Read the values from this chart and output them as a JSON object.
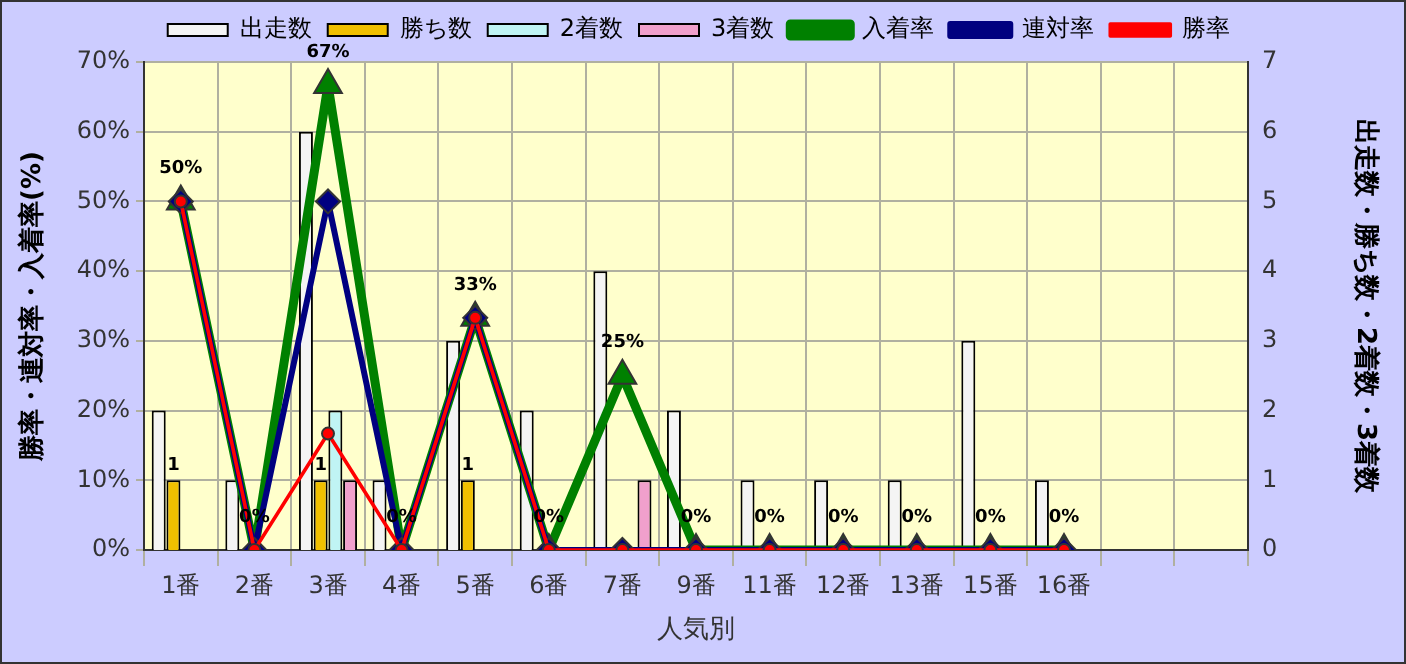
{
  "chart_data": {
    "type": "bar",
    "xlabel": "人気別",
    "ylabel": "勝率・連対率・入着率(%)",
    "y2label": "出走数・勝ち数・2着数・3着数",
    "categories": [
      "1番",
      "2番",
      "3番",
      "4番",
      "5番",
      "6番",
      "7番",
      "9番",
      "11番",
      "12番",
      "13番",
      "15番",
      "16番",
      null,
      null
    ],
    "series": [
      {
        "name": "出走数",
        "axis": "y2",
        "color": "#f4f4f4",
        "values": [
          2,
          1,
          6,
          1,
          3,
          2,
          4,
          2,
          1,
          1,
          1,
          3,
          1,
          null,
          null
        ]
      },
      {
        "name": "勝ち数",
        "axis": "y2",
        "color": "#f0c000",
        "values": [
          1,
          0,
          1,
          0,
          1,
          0,
          0,
          0,
          0,
          0,
          0,
          0,
          0,
          null,
          null
        ],
        "value_labels": [
          "1",
          null,
          "1",
          null,
          "1",
          null,
          null,
          null,
          null,
          null,
          null,
          null,
          null,
          null,
          null
        ]
      },
      {
        "name": "2着数",
        "axis": "y2",
        "color": "#c0f4f4",
        "values": [
          0,
          0,
          2,
          0,
          0,
          0,
          0,
          0,
          0,
          0,
          0,
          0,
          0,
          null,
          null
        ]
      },
      {
        "name": "3着数",
        "axis": "y2",
        "color": "#f0a0cc",
        "values": [
          0,
          0,
          1,
          0,
          0,
          0,
          1,
          0,
          0,
          0,
          0,
          0,
          0,
          null,
          null
        ]
      },
      {
        "name": "入着率",
        "type": "line",
        "marker": "triangle",
        "color": "#008000",
        "values": [
          50,
          0,
          66.7,
          0,
          33.3,
          0,
          25,
          0,
          0,
          0,
          0,
          0,
          0,
          null,
          null
        ],
        "value_labels": [
          "50%",
          "0%",
          "67%",
          "0%",
          "33%",
          "0%",
          "25%",
          "0%",
          "0%",
          "0%",
          "0%",
          "0%",
          "0%",
          null,
          null
        ]
      },
      {
        "name": "連対率",
        "type": "line",
        "marker": "diamond",
        "color": "#000080",
        "values": [
          50,
          0,
          50,
          0,
          33.3,
          0,
          0,
          0,
          0,
          0,
          0,
          0,
          0,
          null,
          null
        ]
      },
      {
        "name": "勝率",
        "type": "line",
        "marker": "circle",
        "color": "#ff0000",
        "values": [
          50,
          0,
          16.7,
          0,
          33.3,
          0,
          0,
          0,
          0,
          0,
          0,
          0,
          0,
          null,
          null
        ]
      }
    ],
    "ylim": [
      0,
      70
    ],
    "yticks": [
      {
        "value": 0,
        "label": "0%"
      },
      {
        "value": 10,
        "label": "10%"
      },
      {
        "value": 20,
        "label": "20%"
      },
      {
        "value": 30,
        "label": "30%"
      },
      {
        "value": 40,
        "label": "40%"
      },
      {
        "value": 50,
        "label": "50%"
      },
      {
        "value": 60,
        "label": "60%"
      },
      {
        "value": 70,
        "label": "70%"
      }
    ],
    "y2lim": [
      0,
      7
    ],
    "y2ticks": [
      0,
      1,
      2,
      3,
      4,
      5,
      6,
      7
    ],
    "grid": true,
    "legend": "top",
    "line_style": "solid"
  }
}
